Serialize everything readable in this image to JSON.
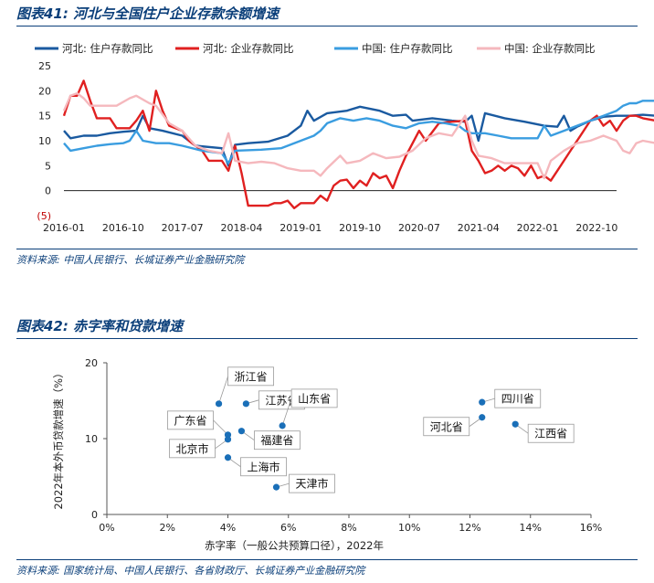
{
  "figure1": {
    "title": "图表41:  河北与全国住户企业存款余额增速",
    "source": "资料来源:  中国人民银行、长城证券产业金融研究院"
  },
  "figure2": {
    "title": "图表42:  赤字率和贷款增速",
    "source": "资料来源:  国家统计局、中国人民银行、各省财政厅、长城证券产业金融研究院"
  },
  "chart_data": [
    {
      "type": "line",
      "title": "河北与全国住户企业存款余额增速",
      "xlabel": "",
      "ylabel": "",
      "ylim": [
        -5,
        25
      ],
      "y_ticks": [
        "25",
        "20",
        "15",
        "10",
        "5",
        "0",
        "(5)"
      ],
      "x_ticks": [
        "2016-01",
        "2016-10",
        "2017-07",
        "2018-04",
        "2019-01",
        "2019-10",
        "2020-07",
        "2021-04",
        "2022-01",
        "2022-10"
      ],
      "x_index_range": [
        0,
        84
      ],
      "legend_position": "top",
      "series": [
        {
          "name": "河北:住户存款同比",
          "legend_label": "河北: 住户存款同比",
          "color": "#1a5aa0",
          "points": [
            [
              0,
              12
            ],
            [
              1,
              10.5
            ],
            [
              3,
              11
            ],
            [
              5,
              11
            ],
            [
              7,
              11.5
            ],
            [
              9,
              11.8
            ],
            [
              11,
              12
            ],
            [
              12,
              15
            ],
            [
              13,
              12.5
            ],
            [
              15,
              12
            ],
            [
              18,
              11
            ],
            [
              20,
              9
            ],
            [
              24,
              8.5
            ],
            [
              25,
              5
            ],
            [
              26,
              9.2
            ],
            [
              28,
              9.5
            ],
            [
              31,
              9.8
            ],
            [
              34,
              11
            ],
            [
              36,
              13
            ],
            [
              37,
              16
            ],
            [
              38,
              14
            ],
            [
              40,
              15.5
            ],
            [
              43,
              16
            ],
            [
              45,
              16.8
            ],
            [
              48,
              16
            ],
            [
              50,
              15
            ],
            [
              52,
              15.2
            ],
            [
              53,
              14
            ],
            [
              56,
              14.5
            ],
            [
              59,
              14
            ],
            [
              61,
              13.8
            ],
            [
              62,
              15
            ],
            [
              63,
              10
            ],
            [
              64,
              15.5
            ],
            [
              67,
              14.5
            ],
            [
              70,
              13.8
            ],
            [
              73,
              13
            ],
            [
              75,
              12.8
            ],
            [
              76,
              15
            ],
            [
              77,
              12
            ],
            [
              78,
              12.8
            ],
            [
              80,
              14
            ],
            [
              82,
              14.8
            ],
            [
              84,
              15
            ],
            [
              86,
              15
            ],
            [
              88,
              15.2
            ],
            [
              90,
              15
            ]
          ]
        },
        {
          "name": "河北:企业存款同比",
          "legend_label": "河北: 企业存款同比",
          "color": "#e02020",
          "points": [
            [
              0,
              15
            ],
            [
              1,
              19
            ],
            [
              2,
              19
            ],
            [
              3,
              22
            ],
            [
              4,
              18
            ],
            [
              5,
              14.5
            ],
            [
              7,
              14.5
            ],
            [
              8,
              12.5
            ],
            [
              10,
              12.5
            ],
            [
              11,
              14
            ],
            [
              12,
              16
            ],
            [
              13,
              12
            ],
            [
              14,
              20
            ],
            [
              15,
              16
            ],
            [
              16,
              13
            ],
            [
              18,
              12
            ],
            [
              19,
              10
            ],
            [
              21,
              8
            ],
            [
              22,
              6
            ],
            [
              24,
              6
            ],
            [
              25,
              4
            ],
            [
              26,
              9
            ],
            [
              27,
              3.5
            ],
            [
              28,
              -3
            ],
            [
              29,
              -3
            ],
            [
              31,
              -3
            ],
            [
              32,
              -2.5
            ],
            [
              33,
              -2.5
            ],
            [
              34,
              -2
            ],
            [
              35,
              -3.5
            ],
            [
              36,
              -2.5
            ],
            [
              38,
              -2.5
            ],
            [
              39,
              -1
            ],
            [
              40,
              -2
            ],
            [
              41,
              1
            ],
            [
              42,
              2
            ],
            [
              43,
              2.2
            ],
            [
              44,
              0.5
            ],
            [
              45,
              2
            ],
            [
              46,
              1
            ],
            [
              47,
              3.5
            ],
            [
              48,
              2.5
            ],
            [
              49,
              3
            ],
            [
              50,
              0.5
            ],
            [
              51,
              4
            ],
            [
              52,
              7
            ],
            [
              54,
              12
            ],
            [
              55,
              10
            ],
            [
              57,
              13.5
            ],
            [
              59,
              13.8
            ],
            [
              61,
              14
            ],
            [
              62,
              8
            ],
            [
              63,
              6
            ],
            [
              64,
              3.5
            ],
            [
              65,
              4
            ],
            [
              66,
              5
            ],
            [
              67,
              4
            ],
            [
              68,
              5
            ],
            [
              69,
              4.5
            ],
            [
              70,
              3
            ],
            [
              71,
              5
            ],
            [
              72,
              2.5
            ],
            [
              73,
              3
            ],
            [
              74,
              2
            ],
            [
              75,
              4
            ],
            [
              76,
              6
            ],
            [
              77,
              8
            ],
            [
              78,
              10
            ],
            [
              79,
              12
            ],
            [
              80,
              14
            ],
            [
              81,
              15
            ],
            [
              82,
              13
            ],
            [
              83,
              14
            ],
            [
              84,
              12
            ],
            [
              85,
              14
            ],
            [
              86,
              15
            ],
            [
              87,
              15
            ],
            [
              88,
              14.5
            ],
            [
              90,
              14
            ]
          ]
        },
        {
          "name": "中国:住户存款同比",
          "legend_label": "中国: 住户存款同比",
          "color": "#3a9de0",
          "points": [
            [
              0,
              9.5
            ],
            [
              1,
              8
            ],
            [
              3,
              8.5
            ],
            [
              5,
              9
            ],
            [
              7,
              9.3
            ],
            [
              9,
              9.5
            ],
            [
              10,
              10
            ],
            [
              11,
              12
            ],
            [
              12,
              10
            ],
            [
              14,
              9.5
            ],
            [
              16,
              9.5
            ],
            [
              18,
              9
            ],
            [
              21,
              8
            ],
            [
              24,
              7.5
            ],
            [
              25,
              5.5
            ],
            [
              26,
              8
            ],
            [
              30,
              8.2
            ],
            [
              33,
              8.5
            ],
            [
              36,
              10
            ],
            [
              38,
              11
            ],
            [
              39,
              12
            ],
            [
              40,
              13.5
            ],
            [
              42,
              14.5
            ],
            [
              44,
              14
            ],
            [
              46,
              14.5
            ],
            [
              48,
              14
            ],
            [
              50,
              13
            ],
            [
              52,
              12.5
            ],
            [
              54,
              13.5
            ],
            [
              56,
              13.8
            ],
            [
              58,
              13.5
            ],
            [
              60,
              13
            ],
            [
              61,
              12
            ],
            [
              62,
              11.5
            ],
            [
              64,
              11.5
            ],
            [
              66,
              11
            ],
            [
              68,
              10.5
            ],
            [
              70,
              10.5
            ],
            [
              72,
              10.5
            ],
            [
              73,
              13
            ],
            [
              74,
              11
            ],
            [
              76,
              12
            ],
            [
              78,
              13
            ],
            [
              80,
              14
            ],
            [
              82,
              15
            ],
            [
              84,
              16
            ],
            [
              85,
              17
            ],
            [
              86,
              17.5
            ],
            [
              87,
              17.5
            ],
            [
              88,
              18
            ],
            [
              90,
              18
            ]
          ]
        },
        {
          "name": "中国:企业存款同比",
          "legend_label": "中国: 企业存款同比",
          "color": "#f5b8bd",
          "points": [
            [
              0,
              16
            ],
            [
              1,
              19
            ],
            [
              2,
              19.5
            ],
            [
              3,
              18.5
            ],
            [
              4,
              17
            ],
            [
              6,
              17
            ],
            [
              8,
              17
            ],
            [
              10,
              18.5
            ],
            [
              11,
              19
            ],
            [
              13,
              17.5
            ],
            [
              14,
              17
            ],
            [
              16,
              13.5
            ],
            [
              18,
              12
            ],
            [
              20,
              9
            ],
            [
              22,
              8
            ],
            [
              24,
              7.5
            ],
            [
              25,
              11.5
            ],
            [
              26,
              6
            ],
            [
              28,
              5.5
            ],
            [
              30,
              5.8
            ],
            [
              32,
              5.5
            ],
            [
              34,
              4.5
            ],
            [
              36,
              4
            ],
            [
              38,
              4
            ],
            [
              39,
              3
            ],
            [
              40,
              4.5
            ],
            [
              42,
              7
            ],
            [
              43,
              5.5
            ],
            [
              45,
              6
            ],
            [
              47,
              7.5
            ],
            [
              49,
              6.5
            ],
            [
              51,
              6.8
            ],
            [
              53,
              8
            ],
            [
              55,
              10.5
            ],
            [
              57,
              11.5
            ],
            [
              59,
              11
            ],
            [
              61,
              15
            ],
            [
              62,
              10
            ],
            [
              63,
              7
            ],
            [
              65,
              6.5
            ],
            [
              67,
              5.5
            ],
            [
              70,
              5.5
            ],
            [
              72,
              5.5
            ],
            [
              73,
              2.5
            ],
            [
              74,
              6
            ],
            [
              76,
              8
            ],
            [
              78,
              9.5
            ],
            [
              80,
              10
            ],
            [
              82,
              11
            ],
            [
              84,
              10
            ],
            [
              85,
              8
            ],
            [
              86,
              7.5
            ],
            [
              87,
              9.5
            ],
            [
              88,
              10
            ],
            [
              90,
              9.5
            ]
          ]
        }
      ]
    },
    {
      "type": "scatter",
      "title": "",
      "xlabel": "赤字率（一般公共预算口径），2022年",
      "ylabel": "2022年本外币贷款增速（%）",
      "xlim": [
        0,
        16
      ],
      "ylim": [
        0,
        20
      ],
      "x_ticks": [
        "0%",
        "2%",
        "4%",
        "6%",
        "8%",
        "10%",
        "12%",
        "14%",
        "16%"
      ],
      "y_ticks": [
        "20",
        "10",
        "0"
      ],
      "point_color": "#1a6fb8",
      "points": [
        {
          "label": "浙江省",
          "x": 3.7,
          "y": 14.6,
          "label_pos": "up-right"
        },
        {
          "label": "江苏省",
          "x": 4.6,
          "y": 14.6,
          "label_pos": "right"
        },
        {
          "label": "山东省",
          "x": 5.8,
          "y": 11.7,
          "label_pos": "up-right"
        },
        {
          "label": "广东省",
          "x": 4.0,
          "y": 10.5,
          "label_pos": "left"
        },
        {
          "label": "福建省",
          "x": 4.45,
          "y": 11.0,
          "label_pos": "down-right"
        },
        {
          "label": "北京市",
          "x": 4.0,
          "y": 9.9,
          "label_pos": "down-left"
        },
        {
          "label": "上海市",
          "x": 4.0,
          "y": 7.5,
          "label_pos": "down-right"
        },
        {
          "label": "天津市",
          "x": 5.6,
          "y": 3.6,
          "label_pos": "right"
        },
        {
          "label": "四川省",
          "x": 12.4,
          "y": 14.8,
          "label_pos": "right"
        },
        {
          "label": "河北省",
          "x": 12.4,
          "y": 12.8,
          "label_pos": "down-left"
        },
        {
          "label": "江西省",
          "x": 13.5,
          "y": 11.9,
          "label_pos": "down-right"
        }
      ]
    }
  ]
}
